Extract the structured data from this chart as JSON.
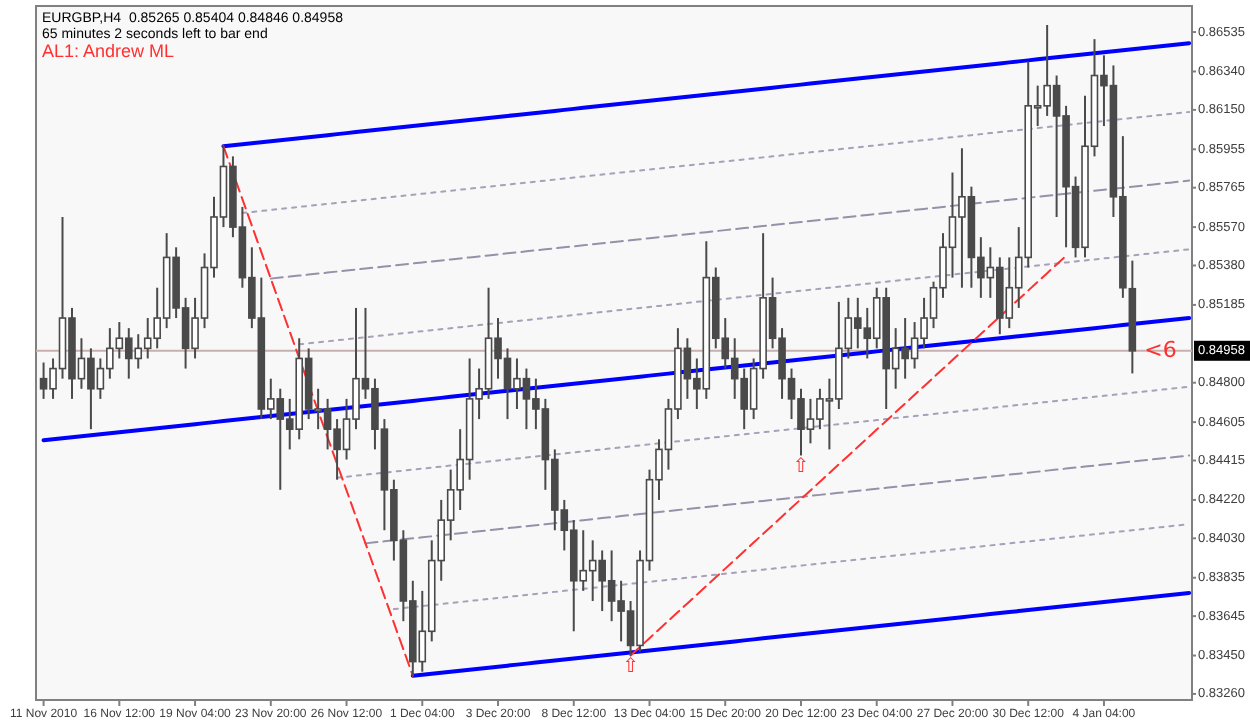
{
  "chart_data": {
    "type": "candlestick",
    "title": "EURGBP,H4  0.85265 0.85404 0.84846 0.84958",
    "subtitle": "65 minutes 2 seconds left to bar end",
    "annotations": [
      "AL1: Andrew ML",
      {
        "text": "<6",
        "y": 0.84958
      },
      {
        "text": "⇧",
        "y": 0.8345
      },
      {
        "text": "⇧",
        "y": 0.8444
      }
    ],
    "color": "#4a4a4a",
    "categories": [
      "11 Nov 2010",
      null,
      null,
      null,
      null,
      null,
      null,
      null,
      "16 Nov 12:00",
      null,
      null,
      null,
      null,
      null,
      null,
      null,
      "19 Nov 04:00",
      null,
      null,
      null,
      null,
      null,
      null,
      null,
      "23 Nov 20:00",
      null,
      null,
      null,
      null,
      null,
      null,
      null,
      "26 Nov 12:00",
      null,
      null,
      null,
      null,
      null,
      null,
      null,
      "1 Dec 04:00",
      null,
      null,
      null,
      null,
      null,
      null,
      null,
      "3 Dec 20:00",
      null,
      null,
      null,
      null,
      null,
      null,
      null,
      "8 Dec 12:00",
      null,
      null,
      null,
      null,
      null,
      null,
      null,
      "13 Dec 04:00",
      null,
      null,
      null,
      null,
      null,
      null,
      null,
      "15 Dec 20:00",
      null,
      null,
      null,
      null,
      null,
      null,
      null,
      "20 Dec 12:00",
      null,
      null,
      null,
      null,
      null,
      null,
      null,
      "23 Dec 04:00",
      null,
      null,
      null,
      null,
      null,
      null,
      null,
      "27 Dec 20:00",
      null,
      null,
      null,
      null,
      null,
      null,
      null,
      "30 Dec 12:00",
      null,
      null,
      null,
      null,
      null,
      null,
      null,
      "4 Jan 04:00",
      null,
      null,
      null,
      null,
      null,
      null,
      null,
      null,
      null
    ],
    "ylim": [
      0.8323,
      0.86664
    ],
    "yticks": [
      0.86535,
      {
        "value": 0.8634,
        "label": "0.86340"
      },
      {
        "value": 0.8615,
        "label": "0.86150"
      },
      0.85955,
      0.85765,
      {
        "value": 0.8557,
        "label": "0.85570"
      },
      {
        "value": 0.8538,
        "label": "0.85380"
      },
      0.85185,
      {
        "value": 0.848,
        "label": "0.84800"
      },
      0.84605,
      0.84415,
      {
        "value": 0.8422,
        "label": "0.84220"
      },
      {
        "value": 0.8403,
        "label": "0.84030"
      },
      0.83835,
      0.83645,
      {
        "value": 0.8345,
        "label": "0.83450"
      },
      {
        "value": 0.8326,
        "label": "0.83260"
      }
    ],
    "ref_lines": [
      {
        "axis": "y",
        "value": 0.84958,
        "label": "0.84958",
        "color": "#c8b0b0"
      }
    ],
    "ohlc": [
      [
        0.8482,
        0.849,
        0.8472,
        0.8477
      ],
      [
        0.8477,
        0.8492,
        0.8472,
        0.8487
      ],
      [
        0.8487,
        0.8562,
        0.8482,
        0.8512
      ],
      [
        0.8512,
        0.8517,
        0.8472,
        0.8482
      ],
      [
        0.8482,
        0.8502,
        0.8477,
        0.8492
      ],
      [
        0.8492,
        0.8497,
        0.8457,
        0.8477
      ],
      [
        0.8477,
        0.8492,
        0.8472,
        0.8487
      ],
      [
        0.8487,
        0.8507,
        0.8482,
        0.8497
      ],
      [
        0.8497,
        0.851,
        0.8492,
        0.8502
      ],
      [
        0.8502,
        0.8507,
        0.8482,
        0.8492
      ],
      [
        0.8492,
        0.8504,
        0.8487,
        0.8497
      ],
      [
        0.8497,
        0.8512,
        0.8492,
        0.8502
      ],
      [
        0.8502,
        0.8527,
        0.8497,
        0.8512
      ],
      [
        0.8512,
        0.8554,
        0.8507,
        0.8542
      ],
      [
        0.8542,
        0.8547,
        0.8512,
        0.8517
      ],
      [
        0.8517,
        0.8522,
        0.8487,
        0.8497
      ],
      [
        0.8497,
        0.8522,
        0.8492,
        0.8512
      ],
      [
        0.8512,
        0.8544,
        0.8507,
        0.8537
      ],
      [
        0.8537,
        0.8572,
        0.8532,
        0.8562
      ],
      [
        0.8562,
        0.8597,
        0.8557,
        0.8587
      ],
      [
        0.8587,
        0.8592,
        0.8552,
        0.8557
      ],
      [
        0.8557,
        0.8567,
        0.8527,
        0.8532
      ],
      [
        0.8532,
        0.8547,
        0.8507,
        0.8512
      ],
      [
        0.8512,
        0.8532,
        0.8462,
        0.8467
      ],
      [
        0.8467,
        0.8482,
        0.8462,
        0.8472
      ],
      [
        0.8472,
        0.8477,
        0.8427,
        0.8462
      ],
      [
        0.8462,
        0.8472,
        0.8447,
        0.8457
      ],
      [
        0.8457,
        0.8502,
        0.8452,
        0.8492
      ],
      [
        0.8492,
        0.8497,
        0.8462,
        0.8467
      ],
      [
        0.8467,
        0.8477,
        0.8457,
        0.8467
      ],
      [
        0.8467,
        0.8472,
        0.8447,
        0.8457
      ],
      [
        0.8457,
        0.8462,
        0.8432,
        0.8447
      ],
      [
        0.8447,
        0.8472,
        0.8442,
        0.8462
      ],
      [
        0.8462,
        0.8517,
        0.8457,
        0.8482
      ],
      [
        0.8482,
        0.8517,
        0.8472,
        0.8477
      ],
      [
        0.8477,
        0.8482,
        0.8447,
        0.8457
      ],
      [
        0.8457,
        0.8462,
        0.8407,
        0.8427
      ],
      [
        0.8427,
        0.8432,
        0.8392,
        0.8402
      ],
      [
        0.8402,
        0.8407,
        0.8362,
        0.8372
      ],
      [
        0.8372,
        0.8382,
        0.8335,
        0.8342
      ],
      [
        0.8342,
        0.8377,
        0.8337,
        0.8357
      ],
      [
        0.8357,
        0.8402,
        0.8352,
        0.8392
      ],
      [
        0.8392,
        0.8422,
        0.8382,
        0.8412
      ],
      [
        0.8412,
        0.8437,
        0.8402,
        0.8427
      ],
      [
        0.8427,
        0.8457,
        0.8417,
        0.8442
      ],
      [
        0.8442,
        0.8492,
        0.8432,
        0.8472
      ],
      [
        0.8472,
        0.8487,
        0.8462,
        0.8477
      ],
      [
        0.8477,
        0.8527,
        0.8472,
        0.8502
      ],
      [
        0.8502,
        0.8512,
        0.8482,
        0.8492
      ],
      [
        0.8492,
        0.8497,
        0.8462,
        0.8477
      ],
      [
        0.8477,
        0.8492,
        0.8467,
        0.8482
      ],
      [
        0.8482,
        0.8487,
        0.8457,
        0.8472
      ],
      [
        0.8472,
        0.8482,
        0.8457,
        0.8467
      ],
      [
        0.8467,
        0.8472,
        0.8427,
        0.8442
      ],
      [
        0.8442,
        0.8447,
        0.8407,
        0.8417
      ],
      [
        0.8417,
        0.8422,
        0.8397,
        0.8407
      ],
      [
        0.8407,
        0.8412,
        0.8357,
        0.8382
      ],
      [
        0.8382,
        0.8407,
        0.8377,
        0.8387
      ],
      [
        0.8387,
        0.8402,
        0.8372,
        0.8392
      ],
      [
        0.8392,
        0.8397,
        0.8367,
        0.8382
      ],
      [
        0.8382,
        0.8397,
        0.8362,
        0.8372
      ],
      [
        0.8372,
        0.8382,
        0.8352,
        0.8367
      ],
      [
        0.8367,
        0.8372,
        0.8345,
        0.835
      ],
      [
        0.835,
        0.8397,
        0.8347,
        0.8392
      ],
      [
        0.8392,
        0.8437,
        0.8387,
        0.8432
      ],
      [
        0.8432,
        0.8452,
        0.8422,
        0.8447
      ],
      [
        0.8447,
        0.8472,
        0.8437,
        0.8467
      ],
      [
        0.8467,
        0.8507,
        0.8462,
        0.8497
      ],
      [
        0.8497,
        0.8502,
        0.8472,
        0.8482
      ],
      [
        0.8482,
        0.8492,
        0.8467,
        0.8477
      ],
      [
        0.8477,
        0.855,
        0.8472,
        0.8532
      ],
      [
        0.8532,
        0.8537,
        0.8497,
        0.8502
      ],
      [
        0.8502,
        0.8512,
        0.8487,
        0.8492
      ],
      [
        0.8492,
        0.8502,
        0.8472,
        0.8482
      ],
      [
        0.8482,
        0.8487,
        0.8457,
        0.8467
      ],
      [
        0.8467,
        0.8492,
        0.8462,
        0.8487
      ],
      [
        0.8487,
        0.8554,
        0.8482,
        0.8522
      ],
      [
        0.8522,
        0.8532,
        0.8497,
        0.8502
      ],
      [
        0.8502,
        0.8507,
        0.8472,
        0.8482
      ],
      [
        0.8482,
        0.8487,
        0.8462,
        0.8472
      ],
      [
        0.8472,
        0.8477,
        0.8444,
        0.8457
      ],
      [
        0.8457,
        0.8472,
        0.845,
        0.8462
      ],
      [
        0.8462,
        0.8477,
        0.8457,
        0.8472
      ],
      [
        0.8472,
        0.8482,
        0.8447,
        0.8472
      ],
      [
        0.8472,
        0.852,
        0.8467,
        0.8497
      ],
      [
        0.8497,
        0.8522,
        0.8492,
        0.8512
      ],
      [
        0.8512,
        0.8522,
        0.8497,
        0.8507
      ],
      [
        0.8507,
        0.8517,
        0.8492,
        0.8502
      ],
      [
        0.8502,
        0.8527,
        0.8497,
        0.8522
      ],
      [
        0.8522,
        0.8527,
        0.8467,
        0.8487
      ],
      [
        0.8487,
        0.8507,
        0.8477,
        0.8497
      ],
      [
        0.8497,
        0.8512,
        0.8482,
        0.8492
      ],
      [
        0.8492,
        0.851,
        0.8487,
        0.8502
      ],
      [
        0.8502,
        0.8522,
        0.8497,
        0.8512
      ],
      [
        0.8512,
        0.853,
        0.8507,
        0.8527
      ],
      [
        0.8527,
        0.8554,
        0.8522,
        0.8547
      ],
      [
        0.8547,
        0.8584,
        0.8532,
        0.8562
      ],
      [
        0.8562,
        0.8596,
        0.8527,
        0.8572
      ],
      [
        0.8572,
        0.8577,
        0.8527,
        0.8542
      ],
      [
        0.8542,
        0.8552,
        0.8522,
        0.8532
      ],
      [
        0.8532,
        0.8547,
        0.8522,
        0.8537
      ],
      [
        0.8537,
        0.8542,
        0.8504,
        0.8512
      ],
      [
        0.8512,
        0.8542,
        0.8507,
        0.8527
      ],
      [
        0.8527,
        0.8557,
        0.8517,
        0.8542
      ],
      [
        0.8542,
        0.8639,
        0.8537,
        0.8617
      ],
      [
        0.8617,
        0.8627,
        0.8607,
        0.8617
      ],
      [
        0.8617,
        0.8657,
        0.8612,
        0.8627
      ],
      [
        0.8627,
        0.8632,
        0.8562,
        0.8612
      ],
      [
        0.8612,
        0.8617,
        0.8547,
        0.8577
      ],
      [
        0.8577,
        0.8582,
        0.8542,
        0.8547
      ],
      [
        0.8547,
        0.8622,
        0.8542,
        0.8597
      ],
      [
        0.8597,
        0.865,
        0.8592,
        0.8632
      ],
      [
        0.8632,
        0.8642,
        0.8607,
        0.8627
      ],
      [
        0.8627,
        0.8637,
        0.8562,
        0.8572
      ],
      [
        0.8572,
        0.8602,
        0.8522,
        0.8527
      ],
      [
        0.85265,
        0.85404,
        0.84846,
        0.84958
      ],
      null,
      null,
      null,
      null,
      null,
      null
    ],
    "series": [
      {
        "type": "line",
        "color": "#0000ff",
        "line_style": "solid",
        "values": [
          null,
          null,
          null,
          null,
          null,
          null,
          null,
          null,
          null,
          null,
          null,
          null,
          null,
          null,
          null,
          null,
          null,
          null,
          null,
          0.8597,
          0.85975,
          0.8598,
          0.85985,
          0.8599,
          0.85995,
          0.86,
          0.86005,
          0.8601,
          0.86015,
          0.8602,
          0.86025,
          0.8603,
          0.86035,
          0.8604,
          0.86045,
          0.8605,
          0.86055,
          0.8606,
          0.86065,
          0.8607,
          0.86075,
          0.8608,
          0.86085,
          0.8609,
          0.86095,
          0.861,
          0.86105,
          0.8611,
          0.86115,
          0.8612,
          0.86125,
          0.8613,
          0.86135,
          0.8614,
          0.86145,
          0.8615,
          0.86155,
          0.8616,
          0.86165,
          0.8617,
          0.86175,
          0.8618,
          0.86185,
          0.8619,
          0.86195,
          0.862,
          0.86205,
          0.8621,
          0.86215,
          0.8622,
          0.86225,
          0.8623,
          0.86235,
          0.8624,
          0.86245,
          0.8625,
          0.86255,
          0.8626,
          0.86265,
          0.8627,
          0.86275,
          0.8628,
          0.86285,
          0.8629,
          0.86295,
          0.863,
          0.86305,
          0.8631,
          0.86315,
          0.8632,
          0.86325,
          0.8633,
          0.86335,
          0.8634,
          0.86345,
          0.8635,
          0.86355,
          0.8636,
          0.86365,
          0.8637,
          0.86375,
          0.8638,
          0.86385,
          0.8639,
          0.86395,
          0.864,
          0.86405,
          0.8641,
          0.86415,
          0.8642,
          0.86425,
          0.8643,
          0.86435,
          0.8644,
          0.86445,
          0.8645,
          0.86455,
          0.8646,
          0.86465,
          0.8647,
          0.86475,
          0.8648
        ]
      },
      {
        "type": "line",
        "color": "#0000ff",
        "line_style": "solid",
        "values": [
          0.84515,
          0.8452,
          0.84525,
          0.8453,
          0.84535,
          0.8454,
          0.84545,
          0.8455,
          0.84555,
          0.8456,
          0.84565,
          0.8457,
          0.84575,
          0.8458,
          0.84585,
          0.8459,
          0.84595,
          0.846,
          0.84605,
          0.8461,
          0.84615,
          0.8462,
          0.84625,
          0.8463,
          0.84635,
          0.8464,
          0.84645,
          0.8465,
          0.84655,
          0.8466,
          0.84665,
          0.8467,
          0.84675,
          0.8468,
          0.84685,
          0.8469,
          0.84695,
          0.847,
          0.84705,
          0.8471,
          0.84715,
          0.8472,
          0.84725,
          0.8473,
          0.84735,
          0.8474,
          0.84745,
          0.8475,
          0.84755,
          0.8476,
          0.84765,
          0.8477,
          0.84775,
          0.8478,
          0.84785,
          0.8479,
          0.84795,
          0.848,
          0.84805,
          0.8481,
          0.84815,
          0.8482,
          0.84825,
          0.8483,
          0.84835,
          0.8484,
          0.84845,
          0.8485,
          0.84855,
          0.8486,
          0.84865,
          0.8487,
          0.84875,
          0.8488,
          0.84885,
          0.8489,
          0.84895,
          0.849,
          0.84905,
          0.8491,
          0.84915,
          0.8492,
          0.84925,
          0.8493,
          0.84935,
          0.8494,
          0.84945,
          0.8495,
          0.84955,
          0.8496,
          0.84965,
          0.8497,
          0.84975,
          0.8498,
          0.84985,
          0.8499,
          0.84995,
          0.85,
          0.85005,
          0.8501,
          0.85015,
          0.8502,
          0.85025,
          0.8503,
          0.85035,
          0.8504,
          0.85045,
          0.8505,
          0.85055,
          0.8506,
          0.85065,
          0.8507,
          0.85075,
          0.8508,
          0.85085,
          0.8509,
          0.85095,
          0.851,
          0.85105,
          0.8511,
          0.85115,
          0.8512
        ]
      },
      {
        "type": "line",
        "color": "#0000ff",
        "line_style": "solid",
        "values": [
          null,
          null,
          null,
          null,
          null,
          null,
          null,
          null,
          null,
          null,
          null,
          null,
          null,
          null,
          null,
          null,
          null,
          null,
          null,
          null,
          null,
          null,
          null,
          null,
          null,
          null,
          null,
          null,
          null,
          null,
          null,
          null,
          null,
          null,
          null,
          null,
          null,
          null,
          null,
          0.8335,
          0.83355,
          0.8336,
          0.83365,
          0.8337,
          0.83375,
          0.8338,
          0.83385,
          0.8339,
          0.83395,
          0.834,
          0.83405,
          0.8341,
          0.83415,
          0.8342,
          0.83425,
          0.8343,
          0.83435,
          0.8344,
          0.83445,
          0.8345,
          0.83455,
          0.8346,
          0.83465,
          0.8347,
          0.83475,
          0.8348,
          0.83485,
          0.8349,
          0.83495,
          0.835,
          0.83505,
          0.8351,
          0.83515,
          0.8352,
          0.83525,
          0.8353,
          0.83535,
          0.8354,
          0.83545,
          0.8355,
          0.83555,
          0.8356,
          0.83565,
          0.8357,
          0.83575,
          0.8358,
          0.83585,
          0.8359,
          0.83595,
          0.836,
          0.83605,
          0.8361,
          0.83615,
          0.8362,
          0.83625,
          0.8363,
          0.83635,
          0.8364,
          0.83645,
          0.8365,
          0.83655,
          0.8366,
          0.83665,
          0.8367,
          0.83675,
          0.8368,
          0.83685,
          0.8369,
          0.83695,
          0.837,
          0.83705,
          0.8371,
          0.83715,
          0.8372,
          0.83725,
          0.8373,
          0.83735,
          0.8374,
          0.83745,
          0.8375,
          0.83755,
          0.8376
        ]
      },
      {
        "type": "line",
        "color": "#a8a0b8",
        "line_style": "dotted",
        "values": [
          null,
          null,
          null,
          null,
          null,
          null,
          null,
          null,
          null,
          null,
          null,
          null,
          null,
          null,
          null,
          null,
          null,
          null,
          null,
          null,
          null,
          0.8564,
          0.85645,
          0.8565,
          0.85655,
          0.8566,
          0.85665,
          0.8567,
          0.85675,
          0.8568,
          0.85685,
          0.8569,
          0.85695,
          0.857,
          0.85705,
          0.8571,
          0.85715,
          0.8572,
          0.85725,
          0.8573,
          0.85735,
          0.8574,
          0.85745,
          0.8575,
          0.85755,
          0.8576,
          0.85765,
          0.8577,
          0.85775,
          0.8578,
          0.85785,
          0.8579,
          0.85795,
          0.858,
          0.85805,
          0.8581,
          0.85815,
          0.8582,
          0.85825,
          0.8583,
          0.85835,
          0.8584,
          0.85845,
          0.8585,
          0.85855,
          0.8586,
          0.85865,
          0.8587,
          0.85875,
          0.8588,
          0.85885,
          0.8589,
          0.85895,
          0.859,
          0.85905,
          0.8591,
          0.85915,
          0.8592,
          0.85925,
          0.8593,
          0.85935,
          0.8594,
          0.85945,
          0.8595,
          0.85955,
          0.8596,
          0.85965,
          0.8597,
          0.85975,
          0.8598,
          0.85985,
          0.8599,
          0.85995,
          0.86,
          0.86005,
          0.8601,
          0.86015,
          0.8602,
          0.86025,
          0.8603,
          0.86035,
          0.8604,
          0.86045,
          0.8605,
          0.86055,
          0.8606,
          0.86065,
          0.8607,
          0.86075,
          0.8608,
          0.86085,
          0.8609,
          0.86095,
          0.861,
          0.86105,
          0.8611,
          0.86115,
          0.8612,
          0.86125,
          0.8613,
          0.86135,
          0.8614
        ]
      },
      {
        "type": "line",
        "color": "#9890a8",
        "line_style": "dashed",
        "values": [
          null,
          null,
          null,
          null,
          null,
          null,
          null,
          null,
          null,
          null,
          null,
          null,
          null,
          null,
          null,
          null,
          null,
          null,
          null,
          null,
          null,
          null,
          null,
          null,
          0.85315,
          0.8532,
          0.85325,
          0.8533,
          0.85335,
          0.8534,
          0.85345,
          0.8535,
          0.85355,
          0.8536,
          0.85365,
          0.8537,
          0.85375,
          0.8538,
          0.85385,
          0.8539,
          0.85395,
          0.854,
          0.85405,
          0.8541,
          0.85415,
          0.8542,
          0.85425,
          0.8543,
          0.85435,
          0.8544,
          0.85445,
          0.8545,
          0.85455,
          0.8546,
          0.85465,
          0.8547,
          0.85475,
          0.8548,
          0.85485,
          0.8549,
          0.85495,
          0.855,
          0.85505,
          0.8551,
          0.85515,
          0.8552,
          0.85525,
          0.8553,
          0.85535,
          0.8554,
          0.85545,
          0.8555,
          0.85555,
          0.8556,
          0.85565,
          0.8557,
          0.85575,
          0.8558,
          0.85585,
          0.8559,
          0.85595,
          0.856,
          0.85605,
          0.8561,
          0.85615,
          0.8562,
          0.85625,
          0.8563,
          0.85635,
          0.8564,
          0.85645,
          0.8565,
          0.85655,
          0.8566,
          0.85665,
          0.8567,
          0.85675,
          0.8568,
          0.85685,
          0.8569,
          0.85695,
          0.857,
          0.85705,
          0.8571,
          0.85715,
          0.8572,
          0.85725,
          0.8573,
          0.85735,
          0.8574,
          0.85745,
          0.8575,
          0.85755,
          0.8576,
          0.85765,
          0.8577,
          0.85775,
          0.8578,
          0.85785,
          0.8579,
          0.85795,
          0.858
        ]
      },
      {
        "type": "line",
        "color": "#a8a0b8",
        "line_style": "dotted",
        "values": [
          null,
          null,
          null,
          null,
          null,
          null,
          null,
          null,
          null,
          null,
          null,
          null,
          null,
          null,
          null,
          null,
          null,
          null,
          null,
          null,
          null,
          null,
          null,
          null,
          null,
          null,
          null,
          0.8499,
          0.84995,
          0.85,
          0.85005,
          0.8501,
          0.85015,
          0.8502,
          0.85025,
          0.8503,
          0.85035,
          0.8504,
          0.85045,
          0.8505,
          0.85055,
          0.8506,
          0.85065,
          0.8507,
          0.85075,
          0.8508,
          0.85085,
          0.8509,
          0.85095,
          0.851,
          0.85105,
          0.8511,
          0.85115,
          0.8512,
          0.85125,
          0.8513,
          0.85135,
          0.8514,
          0.85145,
          0.8515,
          0.85155,
          0.8516,
          0.85165,
          0.8517,
          0.85175,
          0.8518,
          0.85185,
          0.8519,
          0.85195,
          0.852,
          0.85205,
          0.8521,
          0.85215,
          0.8522,
          0.85225,
          0.8523,
          0.85235,
          0.8524,
          0.85245,
          0.8525,
          0.85255,
          0.8526,
          0.85265,
          0.8527,
          0.85275,
          0.8528,
          0.85285,
          0.8529,
          0.85295,
          0.853,
          0.85305,
          0.8531,
          0.85315,
          0.8532,
          0.85325,
          0.8533,
          0.85335,
          0.8534,
          0.85345,
          0.8535,
          0.85355,
          0.8536,
          0.85365,
          0.8537,
          0.85375,
          0.8538,
          0.85385,
          0.8539,
          0.85395,
          0.854,
          0.85405,
          0.8541,
          0.85415,
          0.8542,
          0.85425,
          0.8543,
          0.85435,
          0.8544,
          0.85445,
          0.8545,
          0.85455,
          0.8546
        ]
      },
      {
        "type": "line",
        "color": "#a8a0b8",
        "line_style": "dotted",
        "values": [
          null,
          null,
          null,
          null,
          null,
          null,
          null,
          null,
          null,
          null,
          null,
          null,
          null,
          null,
          null,
          null,
          null,
          null,
          null,
          null,
          null,
          null,
          null,
          null,
          null,
          null,
          null,
          null,
          null,
          null,
          null,
          0.8433,
          0.84335,
          0.8434,
          0.84345,
          0.8435,
          0.84355,
          0.8436,
          0.84365,
          0.8437,
          0.84375,
          0.8438,
          0.84385,
          0.8439,
          0.84395,
          0.844,
          0.84405,
          0.8441,
          0.84415,
          0.8442,
          0.84425,
          0.8443,
          0.84435,
          0.8444,
          0.84445,
          0.8445,
          0.84455,
          0.8446,
          0.84465,
          0.8447,
          0.84475,
          0.8448,
          0.84485,
          0.8449,
          0.84495,
          0.845,
          0.84505,
          0.8451,
          0.84515,
          0.8452,
          0.84525,
          0.8453,
          0.84535,
          0.8454,
          0.84545,
          0.8455,
          0.84555,
          0.8456,
          0.84565,
          0.8457,
          0.84575,
          0.8458,
          0.84585,
          0.8459,
          0.84595,
          0.846,
          0.84605,
          0.8461,
          0.84615,
          0.8462,
          0.84625,
          0.8463,
          0.84635,
          0.8464,
          0.84645,
          0.8465,
          0.84655,
          0.8466,
          0.84665,
          0.8467,
          0.84675,
          0.8468,
          0.84685,
          0.8469,
          0.84695,
          0.847,
          0.84705,
          0.8471,
          0.84715,
          0.8472,
          0.84725,
          0.8473,
          0.84735,
          0.8474,
          0.84745,
          0.8475,
          0.84755,
          0.8476,
          0.84765,
          0.8477,
          0.84775,
          0.8478
        ]
      },
      {
        "type": "line",
        "color": "#9890a8",
        "line_style": "dashed",
        "values": [
          null,
          null,
          null,
          null,
          null,
          null,
          null,
          null,
          null,
          null,
          null,
          null,
          null,
          null,
          null,
          null,
          null,
          null,
          null,
          null,
          null,
          null,
          null,
          null,
          null,
          null,
          null,
          null,
          null,
          null,
          null,
          null,
          null,
          null,
          0.84005,
          0.8401,
          0.84015,
          0.8402,
          0.84025,
          0.8403,
          0.84035,
          0.8404,
          0.84045,
          0.8405,
          0.84055,
          0.8406,
          0.84065,
          0.8407,
          0.84075,
          0.8408,
          0.84085,
          0.8409,
          0.84095,
          0.841,
          0.84105,
          0.8411,
          0.84115,
          0.8412,
          0.84125,
          0.8413,
          0.84135,
          0.8414,
          0.84145,
          0.8415,
          0.84155,
          0.8416,
          0.84165,
          0.8417,
          0.84175,
          0.8418,
          0.84185,
          0.8419,
          0.84195,
          0.842,
          0.84205,
          0.8421,
          0.84215,
          0.8422,
          0.84225,
          0.8423,
          0.84235,
          0.8424,
          0.84245,
          0.8425,
          0.84255,
          0.8426,
          0.84265,
          0.8427,
          0.84275,
          0.8428,
          0.84285,
          0.8429,
          0.84295,
          0.843,
          0.84305,
          0.8431,
          0.84315,
          0.8432,
          0.84325,
          0.8433,
          0.84335,
          0.8434,
          0.84345,
          0.8435,
          0.84355,
          0.8436,
          0.84365,
          0.8437,
          0.84375,
          0.8438,
          0.84385,
          0.8439,
          0.84395,
          0.844,
          0.84405,
          0.8441,
          0.84415,
          0.8442,
          0.84425,
          0.8443,
          0.84435,
          0.8444
        ]
      },
      {
        "type": "line",
        "color": "#a8a0b8",
        "line_style": "dotted",
        "values": [
          null,
          null,
          null,
          null,
          null,
          null,
          null,
          null,
          null,
          null,
          null,
          null,
          null,
          null,
          null,
          null,
          null,
          null,
          null,
          null,
          null,
          null,
          null,
          null,
          null,
          null,
          null,
          null,
          null,
          null,
          null,
          null,
          null,
          null,
          null,
          null,
          null,
          0.8368,
          0.83685,
          0.8369,
          0.83695,
          0.837,
          0.83705,
          0.8371,
          0.83715,
          0.8372,
          0.83725,
          0.8373,
          0.83735,
          0.8374,
          0.83745,
          0.8375,
          0.83755,
          0.8376,
          0.83765,
          0.8377,
          0.83775,
          0.8378,
          0.83785,
          0.8379,
          0.83795,
          0.838,
          0.83805,
          0.8381,
          0.83815,
          0.8382,
          0.83825,
          0.8383,
          0.83835,
          0.8384,
          0.83845,
          0.8385,
          0.83855,
          0.8386,
          0.83865,
          0.8387,
          0.83875,
          0.8388,
          0.83885,
          0.8389,
          0.83895,
          0.839,
          0.83905,
          0.8391,
          0.83915,
          0.8392,
          0.83925,
          0.8393,
          0.83935,
          0.8394,
          0.83945,
          0.8395,
          0.83955,
          0.8396,
          0.83965,
          0.8397,
          0.83975,
          0.8398,
          0.83985,
          0.8399,
          0.83995,
          0.84,
          0.84005,
          0.8401,
          0.84015,
          0.8402,
          0.84025,
          0.8403,
          0.84035,
          0.8404,
          0.84045,
          0.8405,
          0.84055,
          0.8406,
          0.84065,
          0.8407,
          0.84075,
          0.8408,
          0.84085,
          0.8409,
          0.84095,
          0.841
        ]
      },
      {
        "type": "line",
        "color": "#ff3030",
        "line_style": "dashed",
        "values": [
          null,
          null,
          null,
          null,
          null,
          null,
          null,
          null,
          null,
          null,
          null,
          null,
          null,
          null,
          null,
          null,
          null,
          null,
          null,
          0.8597,
          0.85839,
          0.85708,
          0.85577,
          0.85446,
          0.85315,
          0.85184,
          0.85053,
          0.84922,
          0.84791,
          0.8466,
          0.84529,
          0.84398,
          0.84267,
          0.84136,
          0.84005,
          0.83874,
          0.83743,
          0.83612,
          0.83481,
          0.8335,
          null,
          null,
          null,
          null,
          null,
          null,
          null,
          null,
          null,
          null,
          null,
          null,
          null,
          null,
          null,
          null,
          null,
          null,
          null,
          null,
          null,
          null,
          null,
          null,
          null,
          null,
          null,
          null,
          null,
          null,
          null,
          null,
          null,
          null,
          null,
          null,
          null,
          null,
          null,
          null,
          null,
          null,
          null,
          null,
          null,
          null,
          null,
          null,
          null,
          null,
          null,
          null,
          null,
          null,
          null,
          null,
          null,
          null,
          null,
          null,
          null,
          null,
          null,
          null,
          null,
          null,
          null,
          null,
          null,
          null,
          null,
          null,
          null,
          null,
          null,
          null,
          null,
          null,
          null,
          null,
          null,
          null
        ]
      },
      {
        "type": "line",
        "color": "#ff3030",
        "line_style": "dashed",
        "values": [
          null,
          null,
          null,
          null,
          null,
          null,
          null,
          null,
          null,
          null,
          null,
          null,
          null,
          null,
          null,
          null,
          null,
          null,
          null,
          null,
          null,
          null,
          null,
          null,
          null,
          null,
          null,
          null,
          null,
          null,
          null,
          null,
          null,
          null,
          null,
          null,
          null,
          null,
          null,
          null,
          null,
          null,
          null,
          null,
          null,
          null,
          null,
          null,
          null,
          null,
          null,
          null,
          null,
          null,
          null,
          null,
          null,
          null,
          null,
          null,
          null,
          null,
          0.8345,
          0.83493,
          0.83536,
          0.83579,
          0.83622,
          0.83665,
          0.83708,
          0.83751,
          0.83794,
          0.83837,
          0.8388,
          0.83923,
          0.83966,
          0.84009,
          0.84052,
          0.84095,
          0.84138,
          0.84181,
          0.84224,
          0.84267,
          0.8431,
          0.84353,
          0.84396,
          0.84439,
          0.84482,
          0.84525,
          0.84568,
          0.84611,
          0.84654,
          0.84697,
          0.8474,
          0.84783,
          0.84826,
          0.84869,
          0.84912,
          0.84955,
          0.84998,
          0.85041,
          0.85084,
          0.85127,
          0.8517,
          0.85213,
          0.85256,
          0.85299,
          0.85342,
          0.85385,
          0.85428,
          null,
          null,
          null,
          null,
          null,
          null,
          null,
          null,
          null,
          null,
          null,
          null,
          null
        ]
      }
    ]
  }
}
